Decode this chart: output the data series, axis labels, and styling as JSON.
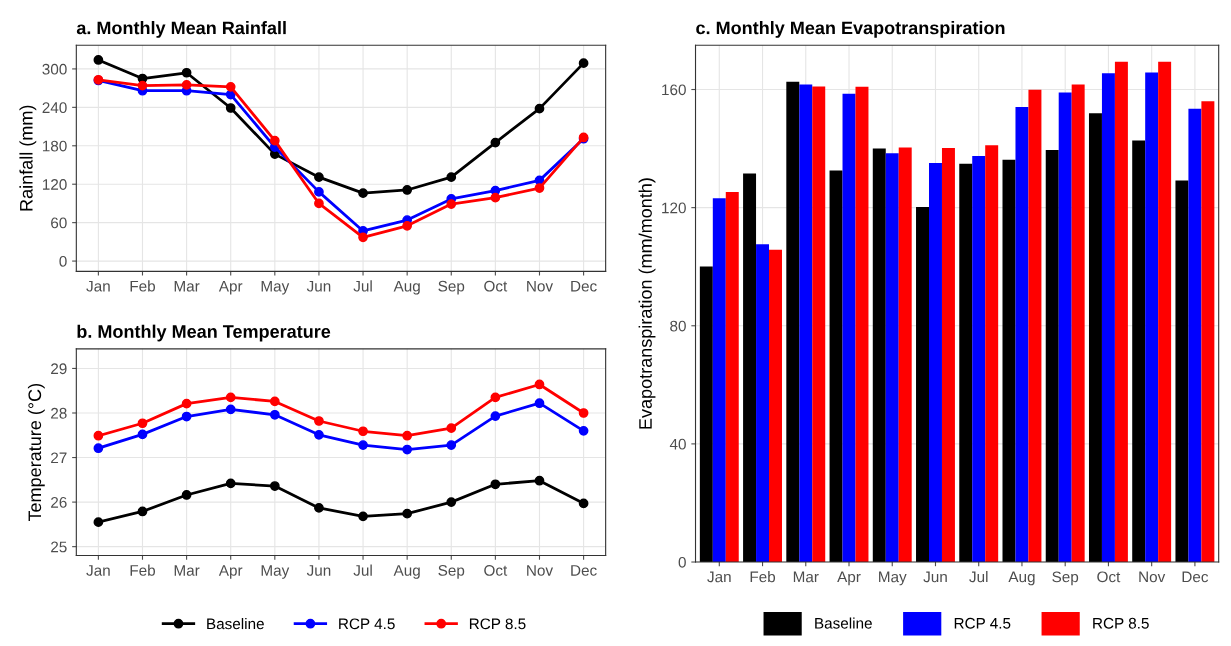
{
  "chart_data": [
    {
      "type": "line",
      "title": "a. Monthly Mean Rainfall",
      "ylabel": "Rainfall (mm)",
      "categories": [
        "Jan",
        "Feb",
        "Mar",
        "Apr",
        "May",
        "Jun",
        "Jul",
        "Aug",
        "Sep",
        "Oct",
        "Nov",
        "Dec"
      ],
      "ylim": [
        -16,
        337
      ],
      "yticks": [
        0,
        60,
        120,
        180,
        240,
        300
      ],
      "grid": true,
      "marker": "circle",
      "line_style": "solid",
      "legend": "bottom",
      "series": [
        {
          "name": "Baseline",
          "color": "#000000",
          "values": [
            314,
            285,
            294,
            239,
            167,
            131,
            106,
            111,
            131,
            185,
            238,
            309
          ]
        },
        {
          "name": "RCP 4.5",
          "color": "#0000ff",
          "values": [
            282,
            266,
            266,
            260,
            178,
            108,
            47,
            64,
            97,
            110,
            126,
            191
          ]
        },
        {
          "name": "RCP 8.5",
          "color": "#ff0000",
          "values": [
            283,
            274,
            275,
            272,
            188,
            90,
            37,
            55,
            89,
            99,
            114,
            193
          ]
        }
      ]
    },
    {
      "type": "line",
      "title": "b. Monthly Mean Temperature",
      "ylabel": "Temperature (°C)",
      "categories": [
        "Jan",
        "Feb",
        "Mar",
        "Apr",
        "May",
        "Jun",
        "Jul",
        "Aug",
        "Sep",
        "Oct",
        "Nov",
        "Dec"
      ],
      "ylim": [
        24.8,
        29.44
      ],
      "yticks": [
        25,
        26,
        27,
        28,
        29
      ],
      "grid": true,
      "marker": "circle",
      "line_style": "solid",
      "series": [
        {
          "color": "#000000",
          "values": [
            25.55,
            25.79,
            26.16,
            26.42,
            26.36,
            25.87,
            25.68,
            25.74,
            26.0,
            26.4,
            26.48,
            25.97
          ]
        },
        {
          "color": "#0000ff",
          "values": [
            27.21,
            27.52,
            27.92,
            28.08,
            27.96,
            27.51,
            27.28,
            27.18,
            27.28,
            27.93,
            28.22,
            27.6
          ]
        },
        {
          "color": "#ff0000",
          "values": [
            27.49,
            27.77,
            28.21,
            28.35,
            28.26,
            27.82,
            27.59,
            27.49,
            27.66,
            28.35,
            28.64,
            28.0
          ]
        }
      ]
    },
    {
      "type": "bar",
      "title": "c. Monthly Mean Evapotranspiration",
      "ylabel": "Evapotranspiration (mm/month)",
      "categories": [
        "Jan",
        "Feb",
        "Mar",
        "Apr",
        "May",
        "Jun",
        "Jul",
        "Aug",
        "Sep",
        "Oct",
        "Nov",
        "Dec"
      ],
      "ylim": [
        0,
        175
      ],
      "yticks": [
        0,
        40,
        80,
        120,
        160
      ],
      "grid": true,
      "legend": "bottom",
      "series": [
        {
          "name": "Baseline",
          "color": "#000000",
          "values": [
            100.1,
            131.6,
            162.6,
            132.6,
            140,
            120.2,
            134.9,
            136.2,
            139.5,
            152,
            142.7,
            129.2
          ]
        },
        {
          "name": "RCP 4.5",
          "color": "#0000ff",
          "values": [
            123.2,
            107.6,
            161.7,
            158.6,
            138.4,
            135.1,
            137.5,
            154.1,
            159,
            165.5,
            165.8,
            153.5
          ]
        },
        {
          "name": "RCP 8.5",
          "color": "#ff0000",
          "values": [
            125.3,
            105.7,
            161,
            160.9,
            140.4,
            140.2,
            141.1,
            159.9,
            161.7,
            169.4,
            169.4,
            156
          ]
        }
      ]
    }
  ]
}
